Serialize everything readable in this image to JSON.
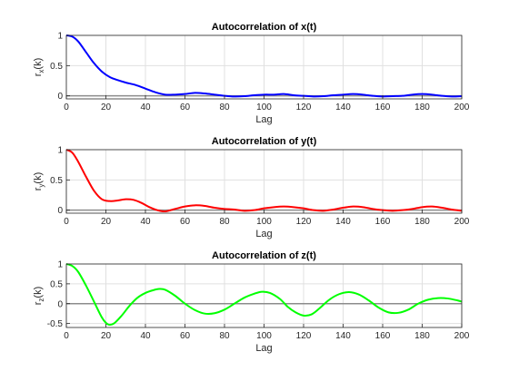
{
  "chart_data": [
    {
      "type": "line",
      "title": "Autocorrelation of x(t)",
      "xlabel": "Lag",
      "ylabel_main": "r",
      "ylabel_sub": "x",
      "ylabel_tail": "(k)",
      "xlim": [
        0,
        200
      ],
      "ylim": [
        -0.05,
        1
      ],
      "xticks": [
        "0",
        "20",
        "40",
        "60",
        "80",
        "100",
        "120",
        "140",
        "160",
        "180",
        "200"
      ],
      "yticks": [
        0,
        0.5,
        1
      ],
      "ytick_labels": [
        "0",
        "0.5",
        "1"
      ],
      "grid": true,
      "color": "#0000ff",
      "x": [
        0,
        3,
        6,
        10,
        14,
        18,
        22,
        26,
        30,
        35,
        40,
        45,
        50,
        55,
        60,
        65,
        70,
        75,
        80,
        85,
        90,
        95,
        100,
        105,
        110,
        115,
        120,
        125,
        130,
        135,
        140,
        145,
        150,
        155,
        160,
        165,
        170,
        175,
        180,
        185,
        190,
        195,
        200
      ],
      "values": [
        1.0,
        0.98,
        0.9,
        0.72,
        0.54,
        0.4,
        0.31,
        0.26,
        0.22,
        0.18,
        0.12,
        0.06,
        0.02,
        0.02,
        0.03,
        0.05,
        0.04,
        0.02,
        0.0,
        -0.01,
        -0.005,
        0.01,
        0.02,
        0.02,
        0.03,
        0.01,
        0.0,
        -0.01,
        -0.005,
        0.01,
        0.02,
        0.03,
        0.02,
        0.0,
        -0.01,
        -0.005,
        0.0,
        0.02,
        0.03,
        0.02,
        0.0,
        -0.01,
        -0.005
      ]
    },
    {
      "type": "line",
      "title": "Autocorrelation of y(t)",
      "xlabel": "Lag",
      "ylabel_main": "r",
      "ylabel_sub": "y",
      "ylabel_tail": "(k)",
      "xlim": [
        0,
        200
      ],
      "ylim": [
        -0.05,
        1
      ],
      "xticks": [
        "0",
        "20",
        "40",
        "60",
        "80",
        "100",
        "120",
        "140",
        "160",
        "180",
        "200"
      ],
      "yticks": [
        0,
        0.5,
        1
      ],
      "ytick_labels": [
        "0",
        "0.5",
        "1"
      ],
      "grid": true,
      "color": "#ff0000",
      "x": [
        0,
        3,
        6,
        10,
        14,
        18,
        22,
        26,
        30,
        34,
        38,
        42,
        46,
        50,
        55,
        60,
        65,
        70,
        75,
        80,
        85,
        90,
        95,
        100,
        105,
        110,
        115,
        120,
        125,
        130,
        135,
        140,
        145,
        150,
        155,
        160,
        165,
        170,
        175,
        180,
        185,
        190,
        195,
        200
      ],
      "values": [
        1.0,
        0.95,
        0.8,
        0.55,
        0.32,
        0.18,
        0.15,
        0.16,
        0.18,
        0.17,
        0.12,
        0.05,
        0.0,
        -0.02,
        0.02,
        0.06,
        0.08,
        0.07,
        0.04,
        0.02,
        0.01,
        -0.01,
        0.0,
        0.03,
        0.05,
        0.06,
        0.05,
        0.03,
        0.0,
        -0.01,
        0.01,
        0.04,
        0.06,
        0.05,
        0.02,
        0.0,
        -0.01,
        0.0,
        0.02,
        0.05,
        0.06,
        0.04,
        0.01,
        -0.01
      ]
    },
    {
      "type": "line",
      "title": "Autocorrelation of z(t)",
      "xlabel": "Lag",
      "ylabel_main": "r",
      "ylabel_sub": "z",
      "ylabel_tail": "(k)",
      "xlim": [
        0,
        200
      ],
      "ylim": [
        -0.6,
        1
      ],
      "xticks": [
        "0",
        "20",
        "40",
        "60",
        "80",
        "100",
        "120",
        "140",
        "160",
        "180",
        "200"
      ],
      "yticks": [
        -0.5,
        0,
        0.5,
        1
      ],
      "ytick_labels": [
        "-0.5",
        "0",
        "0.5",
        "1"
      ],
      "grid": true,
      "color": "#00ff00",
      "x": [
        0,
        3,
        6,
        10,
        14,
        18,
        21,
        24,
        28,
        32,
        36,
        40,
        44,
        47,
        50,
        55,
        60,
        65,
        70,
        75,
        80,
        85,
        90,
        95,
        99,
        103,
        108,
        112,
        116,
        120,
        124,
        128,
        133,
        138,
        143,
        148,
        153,
        158,
        163,
        168,
        173,
        178,
        183,
        188,
        193,
        198,
        200
      ],
      "values": [
        1.0,
        0.95,
        0.8,
        0.45,
        0.05,
        -0.35,
        -0.52,
        -0.5,
        -0.3,
        -0.05,
        0.15,
        0.27,
        0.34,
        0.37,
        0.35,
        0.2,
        0.0,
        -0.16,
        -0.25,
        -0.24,
        -0.15,
        0.0,
        0.15,
        0.25,
        0.3,
        0.27,
        0.12,
        -0.08,
        -0.22,
        -0.3,
        -0.27,
        -0.12,
        0.1,
        0.24,
        0.29,
        0.23,
        0.08,
        -0.1,
        -0.22,
        -0.23,
        -0.15,
        0.0,
        0.1,
        0.14,
        0.13,
        0.08,
        0.05
      ]
    }
  ]
}
